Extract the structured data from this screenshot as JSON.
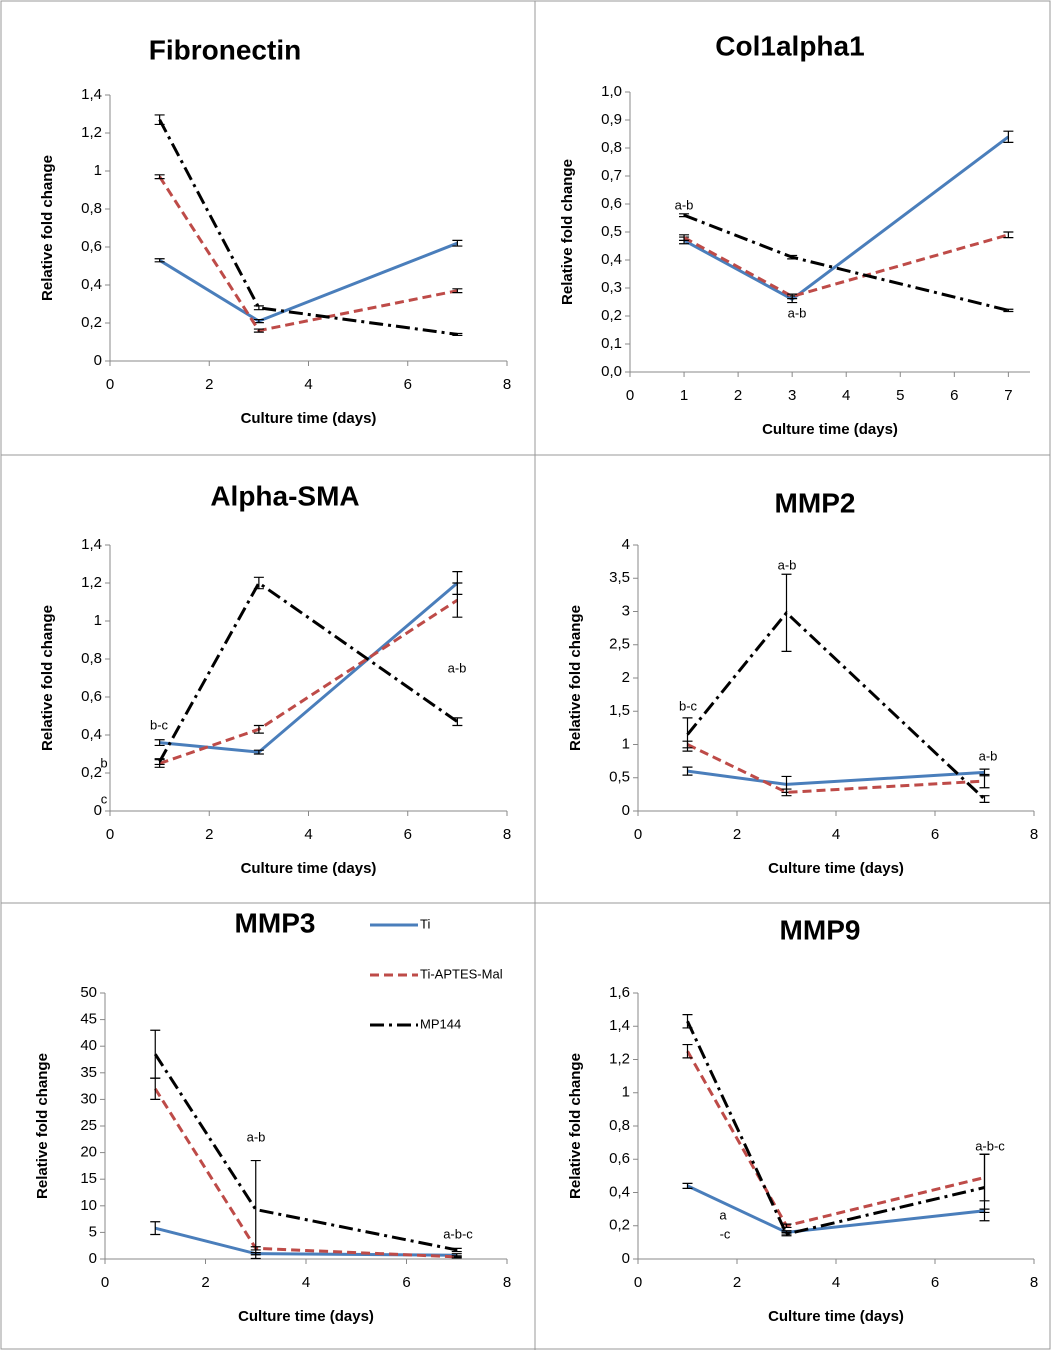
{
  "chart_data": [
    {
      "type": "line",
      "title": "Fibronectin",
      "x_label": "Culture time (days)",
      "y_label": "Relative fold change",
      "x": [
        1,
        3,
        7
      ],
      "xlim": [
        0,
        8
      ],
      "xticks": [
        0,
        2,
        4,
        6,
        8
      ],
      "ylim": [
        0,
        1.4
      ],
      "yticks": [
        0,
        {
          "value": 0.2,
          "label": "0,2"
        },
        {
          "value": 0.4,
          "label": "0,4"
        },
        {
          "value": 0.6,
          "label": "0,6"
        },
        {
          "value": 0.8,
          "label": "0,8"
        },
        1,
        {
          "value": 1.2,
          "label": "1,2"
        },
        {
          "value": 1.4,
          "label": "1,4"
        }
      ],
      "series": [
        {
          "color": "#4a7ebb",
          "dash": "solid",
          "values": [
            0.53,
            0.21,
            0.62
          ],
          "errors": [
            0.008,
            0.008,
            0.015
          ]
        },
        {
          "color": "#be4b48",
          "dash": "dashed",
          "values": [
            0.97,
            0.16,
            0.37
          ],
          "errors": [
            0.01,
            0.008,
            0.01
          ]
        },
        {
          "color": "#000000",
          "dash": "dashdot",
          "values": [
            1.27,
            0.28,
            0.14
          ],
          "errors": [
            0.025,
            0.01,
            0.005
          ]
        }
      ],
      "annotations": []
    },
    {
      "type": "line",
      "title": "Col1alpha1",
      "x_label": "Culture time (days)",
      "y_label": "Relative fold change",
      "x": [
        1,
        3,
        7
      ],
      "xlim": [
        0,
        7.4
      ],
      "xticks": [
        0,
        1,
        2,
        3,
        4,
        5,
        6,
        7
      ],
      "ylim": [
        0,
        1
      ],
      "yticks": [
        {
          "value": 0,
          "label": "0,0"
        },
        {
          "value": 0.1,
          "label": "0,1"
        },
        {
          "value": 0.2,
          "label": "0,2"
        },
        {
          "value": 0.3,
          "label": "0,3"
        },
        {
          "value": 0.4,
          "label": "0,4"
        },
        {
          "value": 0.5,
          "label": "0,5"
        },
        {
          "value": 0.6,
          "label": "0,6"
        },
        {
          "value": 0.7,
          "label": "0,7"
        },
        {
          "value": 0.8,
          "label": "0,8"
        },
        {
          "value": 0.9,
          "label": "0,9"
        },
        {
          "value": 1,
          "label": "1,0"
        }
      ],
      "series": [
        {
          "color": "#4a7ebb",
          "dash": "solid",
          "values": [
            0.47,
            0.26,
            0.84
          ],
          "errors": [
            0.012,
            0.012,
            0.02
          ]
        },
        {
          "color": "#be4b48",
          "dash": "dashed",
          "values": [
            0.48,
            0.27,
            0.49
          ],
          "errors": [
            0.01,
            0.008,
            0.01
          ]
        },
        {
          "color": "#000000",
          "dash": "dashdot",
          "values": [
            0.56,
            0.41,
            0.22
          ],
          "errors": [
            0.005,
            0.006,
            0.004
          ]
        }
      ],
      "annotations": [
        "a-b",
        "a-b"
      ]
    },
    {
      "type": "line",
      "title": "Alpha-SMA",
      "x_label": "Culture time (days)",
      "y_label": "Relative fold change",
      "x": [
        1,
        3,
        7
      ],
      "xlim": [
        0,
        8
      ],
      "xticks": [
        0,
        2,
        4,
        6,
        8
      ],
      "ylim": [
        0,
        1.4
      ],
      "yticks": [
        0,
        {
          "value": 0.2,
          "label": "0,2"
        },
        {
          "value": 0.4,
          "label": "0,4"
        },
        {
          "value": 0.6,
          "label": "0,6"
        },
        {
          "value": 0.8,
          "label": "0,8"
        },
        1,
        {
          "value": 1.2,
          "label": "1,2"
        },
        {
          "value": 1.4,
          "label": "1,4"
        }
      ],
      "series": [
        {
          "color": "#4a7ebb",
          "dash": "solid",
          "values": [
            0.36,
            0.31,
            1.2
          ],
          "errors": [
            0.015,
            0.01,
            0.06
          ]
        },
        {
          "color": "#be4b48",
          "dash": "dashed",
          "values": [
            0.25,
            0.43,
            1.11
          ],
          "errors": [
            0.02,
            0.02,
            0.09
          ]
        },
        {
          "color": "#000000",
          "dash": "dashdot",
          "values": [
            0.26,
            1.2,
            0.47
          ],
          "errors": [
            0.015,
            0.03,
            0.02
          ]
        }
      ],
      "annotations": [
        "b-c",
        "a-b",
        "b",
        "c"
      ]
    },
    {
      "type": "line",
      "title": "MMP2",
      "x_label": "Culture time (days)",
      "y_label": "Relative fold change",
      "x": [
        1,
        3,
        7
      ],
      "xlim": [
        0,
        8
      ],
      "xticks": [
        0,
        2,
        4,
        6,
        8
      ],
      "ylim": [
        0,
        4
      ],
      "yticks": [
        0,
        {
          "value": 0.5,
          "label": "0,5"
        },
        1,
        {
          "value": 1.5,
          "label": "1,5"
        },
        2,
        {
          "value": 2.5,
          "label": "2,5"
        },
        3,
        {
          "value": 3.5,
          "label": "3,5"
        },
        4
      ],
      "series": [
        {
          "color": "#4a7ebb",
          "dash": "solid",
          "values": [
            0.6,
            0.4,
            0.58
          ],
          "errors": [
            0.06,
            0.12,
            0.05
          ]
        },
        {
          "color": "#be4b48",
          "dash": "dashed",
          "values": [
            1.0,
            0.28,
            0.45
          ],
          "errors": [
            0.05,
            0.05,
            0.1
          ]
        },
        {
          "color": "#000000",
          "dash": "dashdot",
          "values": [
            1.15,
            2.98,
            0.18
          ],
          "errors": [
            0.25,
            0.58,
            0.05
          ]
        }
      ],
      "annotations": [
        "b-c",
        "a-b",
        "a-b"
      ]
    },
    {
      "type": "line",
      "title": "MMP3",
      "x_label": "Culture time (days)",
      "y_label": "Relative fold change",
      "x": [
        1,
        3,
        7
      ],
      "xlim": [
        0,
        8
      ],
      "xticks": [
        0,
        2,
        4,
        6,
        8
      ],
      "ylim": [
        0,
        50
      ],
      "yticks": [
        0,
        5,
        10,
        15,
        20,
        25,
        30,
        35,
        40,
        45,
        50
      ],
      "series": [
        {
          "name": "Ti",
          "color": "#4a7ebb",
          "dash": "solid",
          "values": [
            5.8,
            1.0,
            0.7
          ],
          "errors": [
            1.2,
            0.2,
            0.3
          ]
        },
        {
          "name": "Ti-APTES-Mal",
          "color": "#be4b48",
          "dash": "dashed",
          "values": [
            32,
            2.0,
            0.4
          ],
          "errors": [
            2,
            0.3,
            0.2
          ]
        },
        {
          "name": "MP144",
          "color": "#000000",
          "dash": "dashdot",
          "values": [
            38.5,
            9.3,
            1.7
          ],
          "errors": [
            4.5,
            9.2,
            0.3
          ]
        }
      ],
      "annotations": [
        "a-b",
        "a-b-c"
      ]
    },
    {
      "type": "line",
      "title": "MMP9",
      "x_label": "Culture time (days)",
      "y_label": "Relative fold change",
      "x": [
        1,
        3,
        7
      ],
      "xlim": [
        0,
        8
      ],
      "xticks": [
        0,
        2,
        4,
        6,
        8
      ],
      "ylim": [
        0,
        1.6
      ],
      "yticks": [
        0,
        {
          "value": 0.2,
          "label": "0,2"
        },
        {
          "value": 0.4,
          "label": "0,4"
        },
        {
          "value": 0.6,
          "label": "0,6"
        },
        {
          "value": 0.8,
          "label": "0,8"
        },
        1,
        {
          "value": 1.2,
          "label": "1,2"
        },
        {
          "value": 1.4,
          "label": "1,4"
        },
        {
          "value": 1.6,
          "label": "1,6"
        }
      ],
      "series": [
        {
          "color": "#4a7ebb",
          "dash": "solid",
          "values": [
            0.44,
            0.16,
            0.29
          ],
          "errors": [
            0.015,
            0.01,
            0.01
          ]
        },
        {
          "color": "#be4b48",
          "dash": "dashed",
          "values": [
            1.25,
            0.2,
            0.49
          ],
          "errors": [
            0.04,
            0.01,
            0.14
          ]
        },
        {
          "color": "#000000",
          "dash": "dashdot",
          "values": [
            1.43,
            0.15,
            0.43
          ],
          "errors": [
            0.04,
            0.01,
            0.2
          ]
        }
      ],
      "annotations": [
        "a-b-c",
        "a",
        "-c"
      ]
    }
  ]
}
